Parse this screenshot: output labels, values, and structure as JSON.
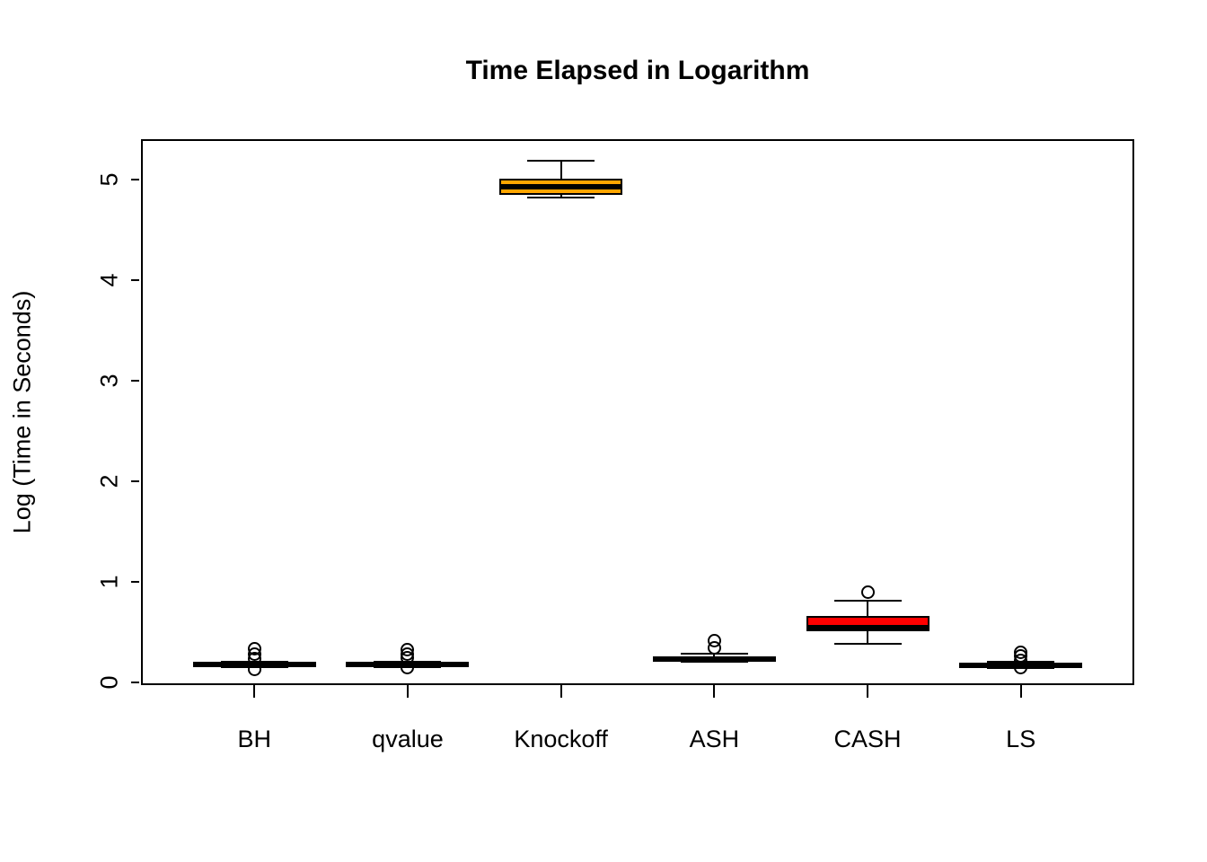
{
  "chart_data": {
    "type": "boxplot",
    "title": "Time Elapsed in Logarithm",
    "xlabel": "",
    "ylabel": "Log (Time in Seconds)",
    "categories": [
      "BH",
      "qvalue",
      "Knockoff",
      "ASH",
      "CASH",
      "LS"
    ],
    "yticks": [
      0,
      1,
      2,
      3,
      4,
      5
    ],
    "ylim": [
      -0.03,
      5.4
    ],
    "grid": false,
    "legend": false,
    "colors": {
      "default_box": "#000000",
      "knockoff_box": "#FFA500",
      "cash_box": "#FF0000",
      "stroke": "#000000",
      "background": "#FFFFFF"
    },
    "groups": [
      {
        "name": "BH",
        "fill": "#000000",
        "whisker_low": 0.15,
        "q1": 0.16,
        "median": 0.175,
        "q3": 0.19,
        "whisker_high": 0.2,
        "outliers": [
          0.33,
          0.28,
          0.23,
          0.13
        ]
      },
      {
        "name": "qvalue",
        "fill": "#000000",
        "whisker_low": 0.15,
        "q1": 0.16,
        "median": 0.175,
        "q3": 0.19,
        "whisker_high": 0.2,
        "outliers": [
          0.32,
          0.28,
          0.24,
          0.14
        ]
      },
      {
        "name": "Knockoff",
        "fill": "#FFA500",
        "whisker_low": 4.82,
        "q1": 4.85,
        "median": 4.93,
        "q3": 5.01,
        "whisker_high": 5.19,
        "outliers": []
      },
      {
        "name": "ASH",
        "fill": "#000000",
        "whisker_low": 0.2,
        "q1": 0.21,
        "median": 0.23,
        "q3": 0.25,
        "whisker_high": 0.28,
        "outliers": [
          0.41,
          0.34
        ]
      },
      {
        "name": "CASH",
        "fill": "#FF0000",
        "whisker_low": 0.38,
        "q1": 0.51,
        "median": 0.545,
        "q3": 0.66,
        "whisker_high": 0.81,
        "outliers": [
          0.89
        ]
      },
      {
        "name": "LS",
        "fill": "#000000",
        "whisker_low": 0.14,
        "q1": 0.155,
        "median": 0.17,
        "q3": 0.185,
        "whisker_high": 0.2,
        "outliers": [
          0.3,
          0.26,
          0.22,
          0.14
        ]
      }
    ]
  }
}
